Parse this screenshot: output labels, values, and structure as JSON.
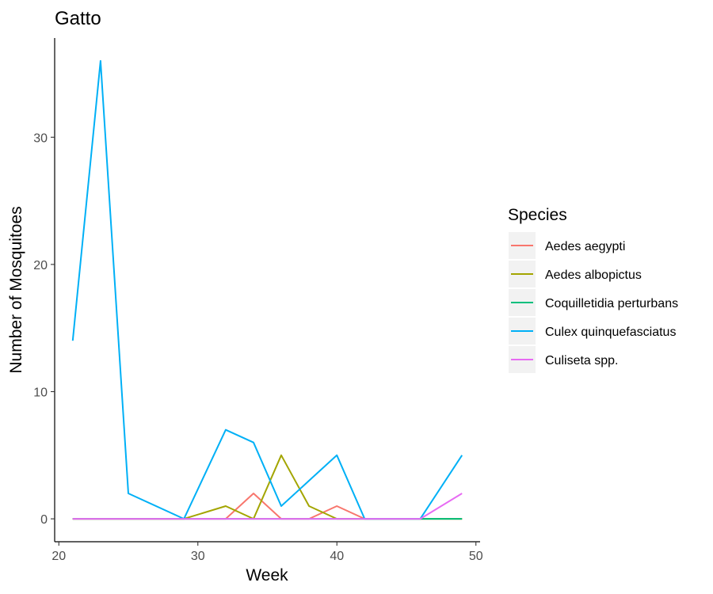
{
  "chart_data": {
    "type": "line",
    "title": "Gatto",
    "xlabel": "Week",
    "ylabel": "Number of Mosquitoes",
    "xlim": [
      19.7,
      50.3
    ],
    "ylim": [
      -1.8,
      37.8
    ],
    "x_ticks": [
      20,
      30,
      40,
      50
    ],
    "y_ticks": [
      0,
      10,
      20,
      30
    ],
    "grid": false,
    "legend": {
      "title": "Species",
      "position": "right"
    },
    "series": [
      {
        "name": "Aedes aegypti",
        "color": "#F8766D",
        "x": [
          21,
          23,
          25,
          29,
          32,
          34,
          36,
          38,
          40,
          42,
          46,
          49
        ],
        "y": [
          0,
          0,
          0,
          0,
          0,
          2,
          0,
          0,
          1,
          0,
          0,
          0
        ]
      },
      {
        "name": "Aedes albopictus",
        "color": "#A3A500",
        "x": [
          21,
          23,
          25,
          29,
          32,
          34,
          36,
          38,
          40,
          42,
          46,
          49
        ],
        "y": [
          0,
          0,
          0,
          0,
          1,
          0,
          5,
          1,
          0,
          0,
          0,
          0
        ]
      },
      {
        "name": "Coquilletidia perturbans",
        "color": "#00BF7D",
        "x": [
          21,
          23,
          25,
          29,
          32,
          34,
          36,
          38,
          40,
          42,
          46,
          49
        ],
        "y": [
          0,
          0,
          0,
          0,
          0,
          0,
          0,
          0,
          0,
          0,
          0,
          0
        ]
      },
      {
        "name": "Culex quinquefasciatus",
        "color": "#00B0F6",
        "x": [
          21,
          23,
          25,
          29,
          32,
          34,
          36,
          38,
          40,
          42,
          46,
          49
        ],
        "y": [
          14,
          36,
          2,
          0,
          7,
          6,
          1,
          3,
          5,
          0,
          0,
          5
        ]
      },
      {
        "name": "Culiseta spp.",
        "color": "#E76BF3",
        "x": [
          21,
          23,
          25,
          29,
          32,
          34,
          36,
          38,
          40,
          42,
          46,
          49
        ],
        "y": [
          0,
          0,
          0,
          0,
          0,
          0,
          0,
          0,
          0,
          0,
          0,
          2
        ]
      }
    ]
  }
}
